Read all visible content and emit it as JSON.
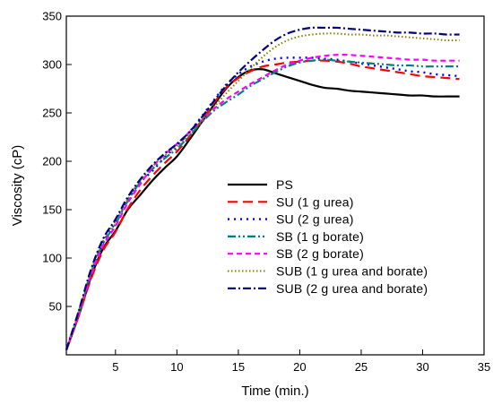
{
  "chart_data": {
    "type": "line",
    "xlabel": "Time (min.)",
    "ylabel": "Viscosity (cP)",
    "xlim": [
      1,
      35
    ],
    "ylim": [
      0,
      350
    ],
    "xticks": [
      5,
      10,
      15,
      20,
      25,
      30,
      35
    ],
    "yticks": [
      50,
      100,
      150,
      200,
      250,
      300,
      350
    ],
    "grid": false,
    "legend_position": "center-right",
    "series": [
      {
        "name": "PS",
        "color": "#000000",
        "dash": "solid",
        "points": [
          [
            1,
            5
          ],
          [
            2,
            40
          ],
          [
            3,
            80
          ],
          [
            4,
            110
          ],
          [
            5,
            128
          ],
          [
            6,
            150
          ],
          [
            7,
            165
          ],
          [
            8,
            180
          ],
          [
            9,
            193
          ],
          [
            10,
            205
          ],
          [
            11,
            222
          ],
          [
            12,
            240
          ],
          [
            13,
            258
          ],
          [
            14,
            275
          ],
          [
            15,
            287
          ],
          [
            16,
            294
          ],
          [
            17,
            295
          ],
          [
            18,
            291
          ],
          [
            19,
            287
          ],
          [
            20,
            283
          ],
          [
            21,
            279
          ],
          [
            22,
            276
          ],
          [
            23,
            275
          ],
          [
            24,
            273
          ],
          [
            25,
            272
          ],
          [
            26,
            271
          ],
          [
            27,
            270
          ],
          [
            28,
            269
          ],
          [
            29,
            268
          ],
          [
            30,
            268
          ],
          [
            31,
            267
          ],
          [
            32,
            267
          ],
          [
            33,
            267
          ]
        ]
      },
      {
        "name": "SU (1 g urea)",
        "color": "#ff0000",
        "dash": "long-dash",
        "points": [
          [
            1,
            5
          ],
          [
            2,
            40
          ],
          [
            3,
            78
          ],
          [
            4,
            108
          ],
          [
            5,
            127
          ],
          [
            6,
            151
          ],
          [
            7,
            170
          ],
          [
            8,
            185
          ],
          [
            9,
            198
          ],
          [
            10,
            210
          ],
          [
            11,
            225
          ],
          [
            12,
            242
          ],
          [
            13,
            260
          ],
          [
            14,
            276
          ],
          [
            15,
            286
          ],
          [
            16,
            293
          ],
          [
            17,
            298
          ],
          [
            18,
            300
          ],
          [
            19,
            302
          ],
          [
            20,
            303
          ],
          [
            21,
            304
          ],
          [
            22,
            304
          ],
          [
            23,
            303
          ],
          [
            24,
            301
          ],
          [
            25,
            298
          ],
          [
            26,
            296
          ],
          [
            27,
            294
          ],
          [
            28,
            292
          ],
          [
            29,
            290
          ],
          [
            30,
            288
          ],
          [
            31,
            287
          ],
          [
            32,
            286
          ],
          [
            33,
            285
          ]
        ]
      },
      {
        "name": "SU (2 g urea)",
        "color": "#0000ff",
        "dash": "dot",
        "points": [
          [
            1,
            5
          ],
          [
            2,
            44
          ],
          [
            3,
            84
          ],
          [
            4,
            116
          ],
          [
            5,
            137
          ],
          [
            6,
            160
          ],
          [
            7,
            178
          ],
          [
            8,
            190
          ],
          [
            9,
            204
          ],
          [
            10,
            216
          ],
          [
            11,
            230
          ],
          [
            12,
            246
          ],
          [
            13,
            263
          ],
          [
            14,
            279
          ],
          [
            15,
            290
          ],
          [
            16,
            298
          ],
          [
            17,
            303
          ],
          [
            18,
            306
          ],
          [
            19,
            307
          ],
          [
            20,
            307
          ],
          [
            21,
            307
          ],
          [
            22,
            306
          ],
          [
            23,
            305
          ],
          [
            24,
            303
          ],
          [
            25,
            301
          ],
          [
            26,
            299
          ],
          [
            27,
            297
          ],
          [
            28,
            295
          ],
          [
            29,
            293
          ],
          [
            30,
            292
          ],
          [
            31,
            290
          ],
          [
            32,
            289
          ],
          [
            33,
            288
          ]
        ]
      },
      {
        "name": "SB (1 g borate)",
        "color": "#008080",
        "dash": "dash-dot-dot",
        "points": [
          [
            1,
            5
          ],
          [
            2,
            42
          ],
          [
            3,
            84
          ],
          [
            4,
            115
          ],
          [
            5,
            135
          ],
          [
            6,
            159
          ],
          [
            7,
            178
          ],
          [
            8,
            192
          ],
          [
            9,
            203
          ],
          [
            10,
            213
          ],
          [
            11,
            226
          ],
          [
            12,
            240
          ],
          [
            13,
            252
          ],
          [
            14,
            261
          ],
          [
            15,
            269
          ],
          [
            16,
            278
          ],
          [
            17,
            285
          ],
          [
            18,
            292
          ],
          [
            19,
            298
          ],
          [
            20,
            302
          ],
          [
            21,
            304
          ],
          [
            22,
            305
          ],
          [
            23,
            304
          ],
          [
            24,
            303
          ],
          [
            25,
            302
          ],
          [
            26,
            301
          ],
          [
            27,
            300
          ],
          [
            28,
            299
          ],
          [
            29,
            299
          ],
          [
            30,
            298
          ],
          [
            31,
            298
          ],
          [
            32,
            298
          ],
          [
            33,
            298
          ]
        ]
      },
      {
        "name": "SB (2 g borate)",
        "color": "#ff00ff",
        "dash": "short-dash",
        "points": [
          [
            1,
            5
          ],
          [
            2,
            41
          ],
          [
            3,
            82
          ],
          [
            4,
            113
          ],
          [
            5,
            133
          ],
          [
            6,
            157
          ],
          [
            7,
            176
          ],
          [
            8,
            194
          ],
          [
            9,
            207
          ],
          [
            10,
            218
          ],
          [
            11,
            230
          ],
          [
            12,
            242
          ],
          [
            13,
            254
          ],
          [
            14,
            264
          ],
          [
            15,
            272
          ],
          [
            16,
            280
          ],
          [
            17,
            287
          ],
          [
            18,
            294
          ],
          [
            19,
            300
          ],
          [
            20,
            304
          ],
          [
            21,
            307
          ],
          [
            22,
            309
          ],
          [
            23,
            310
          ],
          [
            24,
            310
          ],
          [
            25,
            309
          ],
          [
            26,
            308
          ],
          [
            27,
            307
          ],
          [
            28,
            306
          ],
          [
            29,
            305
          ],
          [
            30,
            305
          ],
          [
            31,
            304
          ],
          [
            32,
            304
          ],
          [
            33,
            304
          ]
        ]
      },
      {
        "name": "SUB (1 g urea and borate)",
        "color": "#808000",
        "dash": "fine-dot",
        "points": [
          [
            1,
            5
          ],
          [
            2,
            44
          ],
          [
            3,
            86
          ],
          [
            4,
            118
          ],
          [
            5,
            138
          ],
          [
            6,
            161
          ],
          [
            7,
            180
          ],
          [
            8,
            195
          ],
          [
            9,
            206
          ],
          [
            10,
            216
          ],
          [
            11,
            228
          ],
          [
            12,
            242
          ],
          [
            13,
            256
          ],
          [
            14,
            270
          ],
          [
            15,
            283
          ],
          [
            16,
            296
          ],
          [
            17,
            308
          ],
          [
            18,
            318
          ],
          [
            19,
            325
          ],
          [
            20,
            329
          ],
          [
            21,
            331
          ],
          [
            22,
            332
          ],
          [
            23,
            332
          ],
          [
            24,
            331
          ],
          [
            25,
            331
          ],
          [
            26,
            330
          ],
          [
            27,
            330
          ],
          [
            28,
            329
          ],
          [
            29,
            328
          ],
          [
            30,
            327
          ],
          [
            31,
            326
          ],
          [
            32,
            325
          ],
          [
            33,
            325
          ]
        ]
      },
      {
        "name": "SUB (2 g urea and borate)",
        "color": "#000080",
        "dash": "dash-dot",
        "points": [
          [
            1,
            5
          ],
          [
            2,
            45
          ],
          [
            3,
            88
          ],
          [
            4,
            120
          ],
          [
            5,
            140
          ],
          [
            6,
            163
          ],
          [
            7,
            181
          ],
          [
            8,
            196
          ],
          [
            9,
            208
          ],
          [
            10,
            218
          ],
          [
            11,
            230
          ],
          [
            12,
            245
          ],
          [
            13,
            262
          ],
          [
            14,
            278
          ],
          [
            15,
            292
          ],
          [
            16,
            304
          ],
          [
            17,
            315
          ],
          [
            18,
            325
          ],
          [
            19,
            332
          ],
          [
            20,
            336
          ],
          [
            21,
            338
          ],
          [
            22,
            338
          ],
          [
            23,
            338
          ],
          [
            24,
            337
          ],
          [
            25,
            336
          ],
          [
            26,
            335
          ],
          [
            27,
            334
          ],
          [
            28,
            333
          ],
          [
            29,
            333
          ],
          [
            30,
            332
          ],
          [
            31,
            332
          ],
          [
            32,
            331
          ],
          [
            33,
            331
          ]
        ]
      }
    ]
  }
}
